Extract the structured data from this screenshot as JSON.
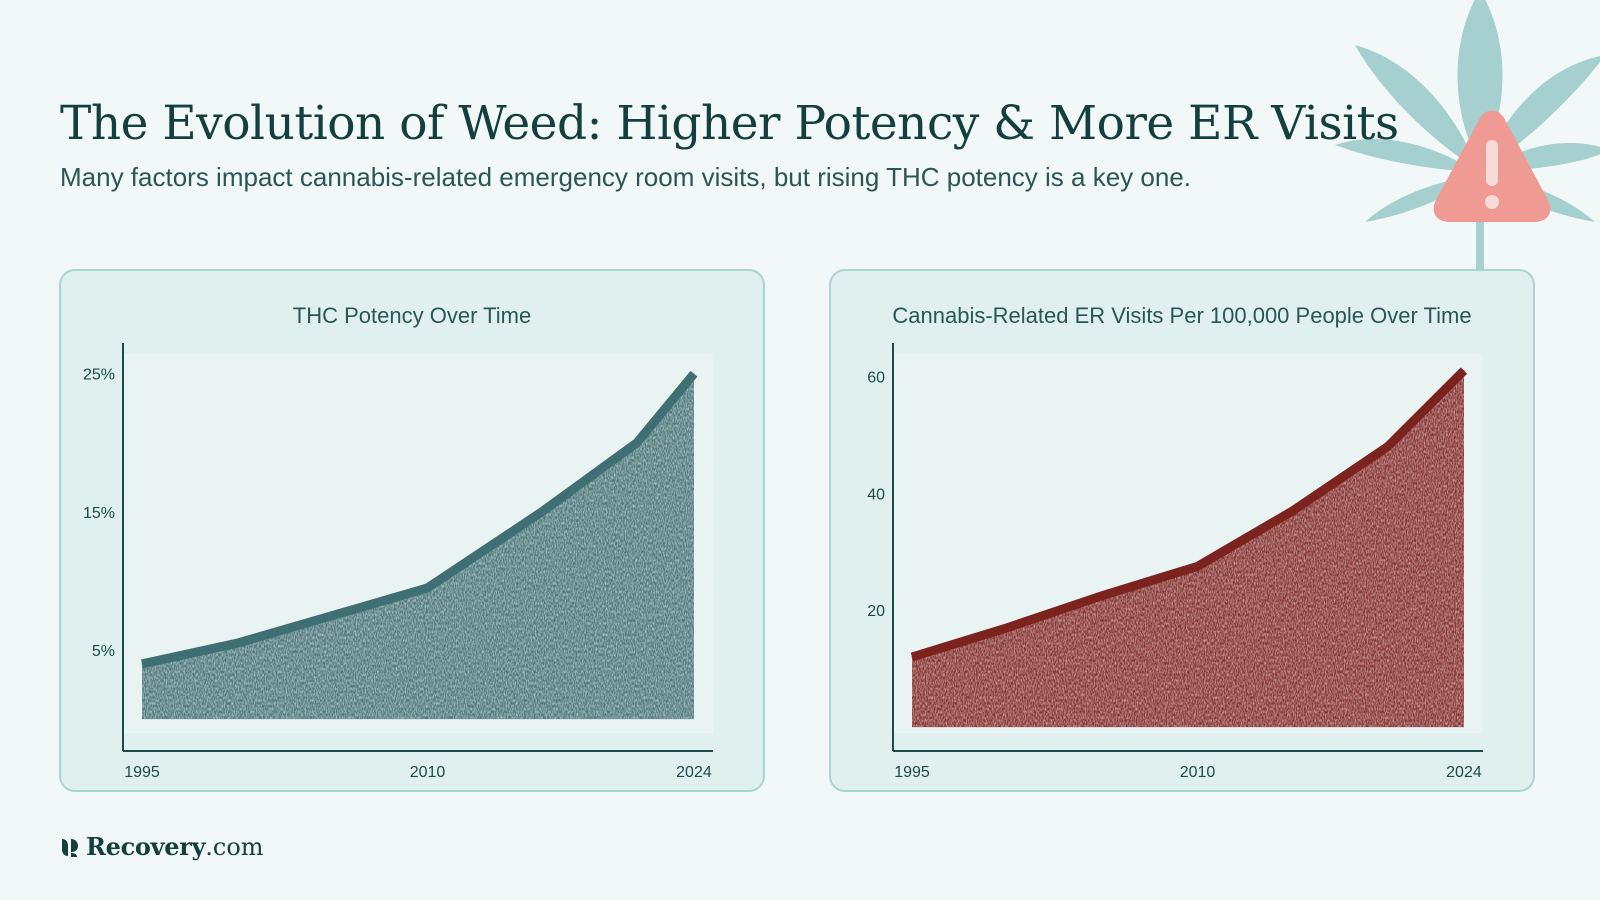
{
  "header": {
    "title": "The Evolution of Weed: Higher Potency & More ER Visits",
    "subtitle": "Many factors impact cannabis-related emergency room visits, but rising THC potency is a key one."
  },
  "brand": {
    "name": "Recovery",
    "domain": ".com"
  },
  "decoration": {
    "leaf": "cannabis-leaf-icon",
    "warning": "warning-triangle-icon",
    "leaf_color": "#a6cfcf",
    "warning_color": "#ef9b93"
  },
  "chart_data": [
    {
      "type": "area",
      "title": "THC Potency Over Time",
      "color": "#3f6f72",
      "x": [
        1995,
        2000,
        2005,
        2010,
        2016,
        2021,
        2024
      ],
      "y": [
        4,
        5.5,
        7.5,
        9.5,
        15,
        20,
        25
      ],
      "xticks": [
        1995,
        2010,
        2024
      ],
      "xtick_labels": [
        "1995",
        "2010",
        "2024"
      ],
      "yticks": [
        5,
        15,
        25
      ],
      "ytick_labels": [
        "5%",
        "15%",
        "25%"
      ],
      "xlim": [
        1994,
        2025
      ],
      "ylim": [
        -1,
        26.5
      ]
    },
    {
      "type": "area",
      "title": "Cannabis-Related ER Visits Per 100,000 People Over Time",
      "color": "#7d231f",
      "x": [
        1995,
        2000,
        2005,
        2010,
        2015,
        2020,
        2024
      ],
      "y": [
        12,
        17,
        22.5,
        27.5,
        37,
        48,
        61
      ],
      "xticks": [
        1995,
        2010,
        2024
      ],
      "xtick_labels": [
        "1995",
        "2010",
        "2024"
      ],
      "yticks": [
        20,
        40,
        60
      ],
      "ytick_labels": [
        "20",
        "40",
        "60"
      ],
      "xlim": [
        1994,
        2025
      ],
      "ylim": [
        -1,
        64
      ]
    }
  ]
}
